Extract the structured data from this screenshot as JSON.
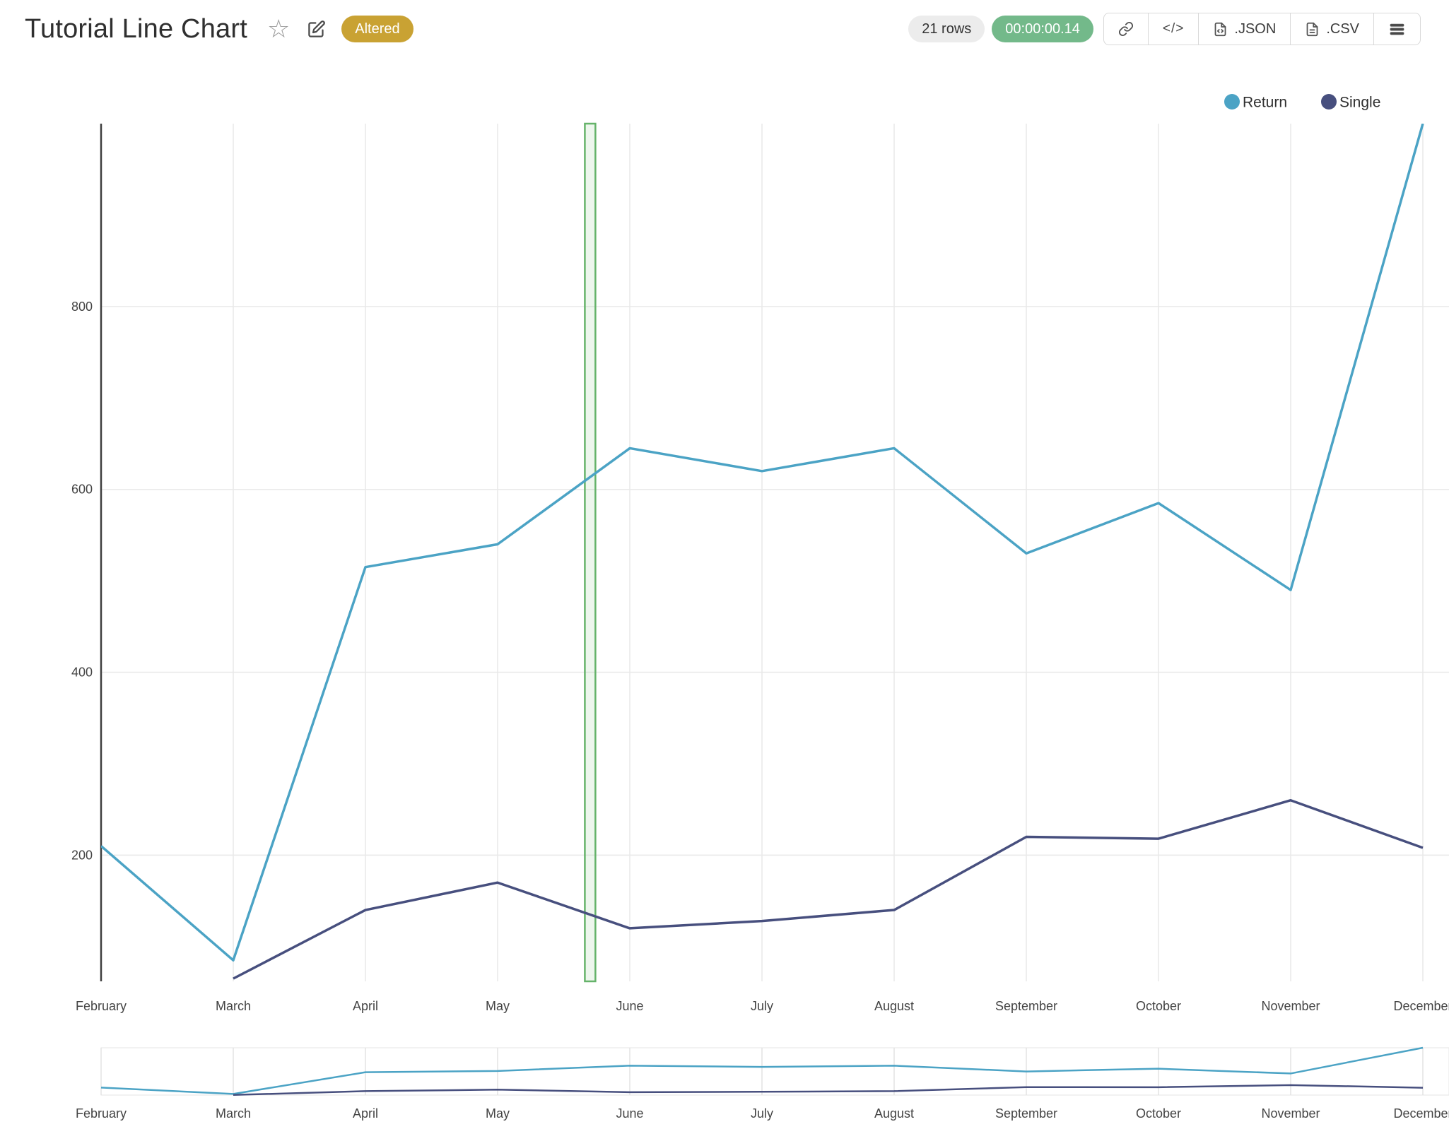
{
  "header": {
    "title": "Tutorial Line Chart",
    "altered_badge": "Altered",
    "rows_badge": "21 rows",
    "timer_badge": "00:00:00.14",
    "embed_icon_text": "</>",
    "export_json_label": ".JSON",
    "export_csv_label": ".CSV"
  },
  "chart_data": {
    "type": "line",
    "title": "Tutorial Line Chart",
    "categories": [
      "February",
      "March",
      "April",
      "May",
      "June",
      "July",
      "August",
      "September",
      "October",
      "November",
      "December"
    ],
    "series": [
      {
        "name": "Return",
        "color": "#4ba3c5",
        "start_index": 0,
        "values": [
          210,
          85,
          515,
          540,
          645,
          620,
          645,
          530,
          585,
          490,
          1000
        ]
      },
      {
        "name": "Single",
        "color": "#474f7e",
        "start_index": 1,
        "values": [
          65,
          140,
          170,
          120,
          128,
          140,
          220,
          218,
          260,
          208
        ]
      }
    ],
    "xlabel": "",
    "ylabel": "",
    "yticks": [
      200,
      400,
      600,
      800
    ],
    "ylim": [
      62,
      1000
    ],
    "grid": true,
    "legend_position": "top-right",
    "highlight_band": {
      "from_index": 3.66,
      "to_index": 3.74,
      "stroke": "#65b36a",
      "fill": "rgba(104,181,108,0.12)"
    },
    "rangeslider": true
  }
}
